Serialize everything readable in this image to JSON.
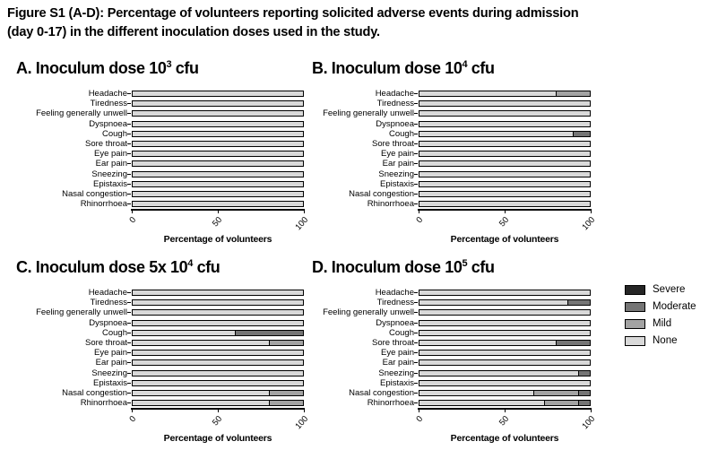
{
  "figure": {
    "title_line1": "Figure S1 (A-D): Percentage of volunteers reporting solicited adverse events during admission",
    "title_line2": "(day 0-17) in the different inoculation doses used in the study."
  },
  "colors": {
    "severe": "#262626",
    "moderate": "#757575",
    "mild": "#a3a3a3",
    "none": "#d9d9d9",
    "bar_border": "#000000"
  },
  "legend": {
    "position": "right-middle",
    "items": [
      {
        "label": "Severe",
        "color_key": "severe"
      },
      {
        "label": "Moderate",
        "color_key": "moderate"
      },
      {
        "label": "Mild",
        "color_key": "mild"
      },
      {
        "label": "None",
        "color_key": "none"
      }
    ]
  },
  "chart_data": [
    {
      "id": "A",
      "type": "bar",
      "orientation": "horizontal",
      "stacked": true,
      "title": {
        "base": "A. Inoculum dose 10",
        "sup": "3",
        "suffix": " cfu"
      },
      "xlabel": "Percentage of volunteers",
      "xlim": [
        0,
        100
      ],
      "xticks": [
        0,
        50,
        100
      ],
      "categories": [
        "Headache",
        "Tiredness",
        "Feeling generally unwell",
        "Dyspnoea",
        "Cough",
        "Sore throat",
        "Eye pain",
        "Ear pain",
        "Sneezing",
        "Epistaxis",
        "Nasal congestion",
        "Rhinorrhoea"
      ],
      "series": [
        {
          "name": "None",
          "values": [
            100,
            100,
            100,
            100,
            100,
            100,
            100,
            100,
            100,
            100,
            100,
            100
          ]
        },
        {
          "name": "Mild",
          "values": [
            0,
            0,
            0,
            0,
            0,
            0,
            0,
            0,
            0,
            0,
            0,
            0
          ]
        },
        {
          "name": "Moderate",
          "values": [
            0,
            0,
            0,
            0,
            0,
            0,
            0,
            0,
            0,
            0,
            0,
            0
          ]
        },
        {
          "name": "Severe",
          "values": [
            0,
            0,
            0,
            0,
            0,
            0,
            0,
            0,
            0,
            0,
            0,
            0
          ]
        }
      ]
    },
    {
      "id": "B",
      "type": "bar",
      "orientation": "horizontal",
      "stacked": true,
      "title": {
        "base": "B. Inoculum dose 10",
        "sup": "4",
        "suffix": " cfu"
      },
      "xlabel": "Percentage of volunteers",
      "xlim": [
        0,
        100
      ],
      "xticks": [
        0,
        50,
        100
      ],
      "categories": [
        "Headache",
        "Tiredness",
        "Feeling generally unwell",
        "Dyspnoea",
        "Cough",
        "Sore throat",
        "Eye pain",
        "Ear pain",
        "Sneezing",
        "Epistaxis",
        "Nasal congestion",
        "Rhinorrhoea"
      ],
      "series": [
        {
          "name": "None",
          "values": [
            80,
            100,
            100,
            100,
            90,
            100,
            100,
            100,
            100,
            100,
            100,
            100
          ]
        },
        {
          "name": "Mild",
          "values": [
            20,
            0,
            0,
            0,
            0,
            0,
            0,
            0,
            0,
            0,
            0,
            0
          ]
        },
        {
          "name": "Moderate",
          "values": [
            0,
            0,
            0,
            0,
            10,
            0,
            0,
            0,
            0,
            0,
            0,
            0
          ]
        },
        {
          "name": "Severe",
          "values": [
            0,
            0,
            0,
            0,
            0,
            0,
            0,
            0,
            0,
            0,
            0,
            0
          ]
        }
      ]
    },
    {
      "id": "C",
      "type": "bar",
      "orientation": "horizontal",
      "stacked": true,
      "title": {
        "base": "C. Inoculum dose 5x 10",
        "sup": "4",
        "suffix": " cfu"
      },
      "xlabel": "Percentage of volunteers",
      "xlim": [
        0,
        100
      ],
      "xticks": [
        0,
        50,
        100
      ],
      "categories": [
        "Headache",
        "Tiredness",
        "Feeling generally unwell",
        "Dyspnoea",
        "Cough",
        "Sore throat",
        "Eye pain",
        "Ear pain",
        "Sneezing",
        "Epistaxis",
        "Nasal congestion",
        "Rhinorrhoea"
      ],
      "series": [
        {
          "name": "None",
          "values": [
            100,
            100,
            100,
            100,
            60,
            80,
            100,
            100,
            100,
            100,
            80,
            80
          ]
        },
        {
          "name": "Mild",
          "values": [
            0,
            0,
            0,
            0,
            0,
            20,
            0,
            0,
            0,
            0,
            20,
            20
          ]
        },
        {
          "name": "Moderate",
          "values": [
            0,
            0,
            0,
            0,
            40,
            0,
            0,
            0,
            0,
            0,
            0,
            0
          ]
        },
        {
          "name": "Severe",
          "values": [
            0,
            0,
            0,
            0,
            0,
            0,
            0,
            0,
            0,
            0,
            0,
            0
          ]
        }
      ]
    },
    {
      "id": "D",
      "type": "bar",
      "orientation": "horizontal",
      "stacked": true,
      "title": {
        "base": "D. Inoculum dose 10",
        "sup": "5",
        "suffix": " cfu"
      },
      "xlabel": "Percentage of volunteers",
      "xlim": [
        0,
        100
      ],
      "xticks": [
        0,
        50,
        100
      ],
      "categories": [
        "Headache",
        "Tiredness",
        "Feeling generally unwell",
        "Dyspnoea",
        "Cough",
        "Sore throat",
        "Eye pain",
        "Ear pain",
        "Sneezing",
        "Epistaxis",
        "Nasal congestion",
        "Rhinorrhoea"
      ],
      "series": [
        {
          "name": "None",
          "values": [
            100,
            87,
            100,
            100,
            100,
            80,
            100,
            100,
            93,
            100,
            67,
            73
          ]
        },
        {
          "name": "Mild",
          "values": [
            0,
            0,
            0,
            0,
            0,
            0,
            0,
            0,
            0,
            0,
            26,
            20
          ]
        },
        {
          "name": "Moderate",
          "values": [
            0,
            13,
            0,
            0,
            0,
            20,
            0,
            0,
            7,
            0,
            7,
            7
          ]
        },
        {
          "name": "Severe",
          "values": [
            0,
            0,
            0,
            0,
            0,
            0,
            0,
            0,
            0,
            0,
            0,
            0
          ]
        }
      ]
    }
  ]
}
